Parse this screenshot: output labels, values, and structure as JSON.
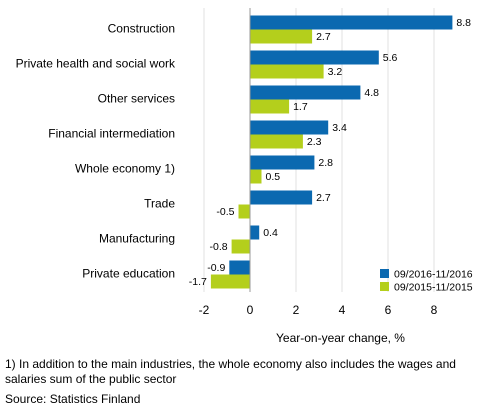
{
  "chart_data": {
    "type": "bar",
    "orientation": "horizontal",
    "categories": [
      "Construction",
      "Private health and social work",
      "Other services",
      "Financial intermediation",
      "Whole economy 1)",
      "Trade",
      "Manufacturing",
      "Private education"
    ],
    "series": [
      {
        "name": "09/2016-11/2016",
        "color": "#0b69b0",
        "values": [
          8.8,
          5.6,
          4.8,
          3.4,
          2.8,
          2.7,
          0.4,
          -0.9
        ]
      },
      {
        "name": "09/2015-11/2015",
        "color": "#b4cf1c",
        "values": [
          2.7,
          3.2,
          1.7,
          2.3,
          0.5,
          -0.5,
          -0.8,
          -1.7
        ]
      }
    ],
    "data_labels": [
      [
        "8.8",
        "5.6",
        "4.8",
        "3.4",
        "2.8",
        "2.7",
        "0.4",
        "-0.9"
      ],
      [
        "2.7",
        "3.2",
        "1.7",
        "2.3",
        "0.5",
        "-0.5",
        "-0.8",
        "-1.7"
      ]
    ],
    "xlabel": "Year-on-year change, %",
    "xlim": [
      -3,
      10
    ],
    "xticks": [
      -2,
      0,
      2,
      4,
      6,
      8
    ],
    "xtick_labels": [
      "-2",
      "0",
      "2",
      "4",
      "6",
      "8"
    ],
    "grid": "vertical",
    "legend_position": "bottom-right"
  },
  "footnote": "1) In addition to the main industries, the whole economy also includes the wages and salaries sum of the public sector",
  "source": "Source: Statistics Finland"
}
